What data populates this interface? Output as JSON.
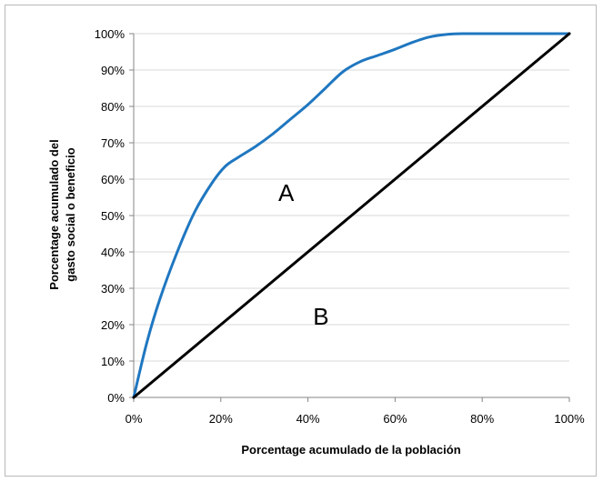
{
  "chart_data": {
    "type": "line",
    "title": "",
    "xlabel": "Porcentage acumulado de la población",
    "ylabel_lines": [
      "Porcentage acumulado del",
      "gasto social o beneficio"
    ],
    "xlim": [
      0,
      100
    ],
    "ylim": [
      0,
      100
    ],
    "x_ticks": [
      0,
      20,
      40,
      60,
      80,
      100
    ],
    "x_tick_labels": [
      "0%",
      "20%",
      "40%",
      "60%",
      "80%",
      "100%"
    ],
    "y_ticks": [
      0,
      10,
      20,
      30,
      40,
      50,
      60,
      70,
      80,
      90,
      100
    ],
    "y_tick_labels": [
      "0%",
      "10%",
      "20%",
      "30%",
      "40%",
      "50%",
      "60%",
      "70%",
      "80%",
      "90%",
      "100%"
    ],
    "grid": "horizontal",
    "legend": "none",
    "series": [
      {
        "color": "#1f77c0",
        "x": [
          0,
          3,
          6,
          10,
          14,
          18,
          21,
          24,
          28,
          32,
          36,
          40,
          44,
          48,
          52,
          56,
          60,
          64,
          68,
          72,
          76,
          80,
          100
        ],
        "y": [
          0,
          15,
          27,
          40,
          51,
          59,
          63.5,
          66,
          69,
          72.5,
          76.5,
          80.5,
          85,
          89.5,
          92.3,
          94,
          95.7,
          97.6,
          99.1,
          99.8,
          100,
          100,
          100
        ]
      },
      {
        "color": "#000000",
        "x": [
          0,
          100
        ],
        "y": [
          0,
          100
        ]
      }
    ],
    "annotations": [
      {
        "text": "A",
        "x": 35,
        "y": 54
      },
      {
        "text": "B",
        "x": 43,
        "y": 20
      }
    ]
  }
}
